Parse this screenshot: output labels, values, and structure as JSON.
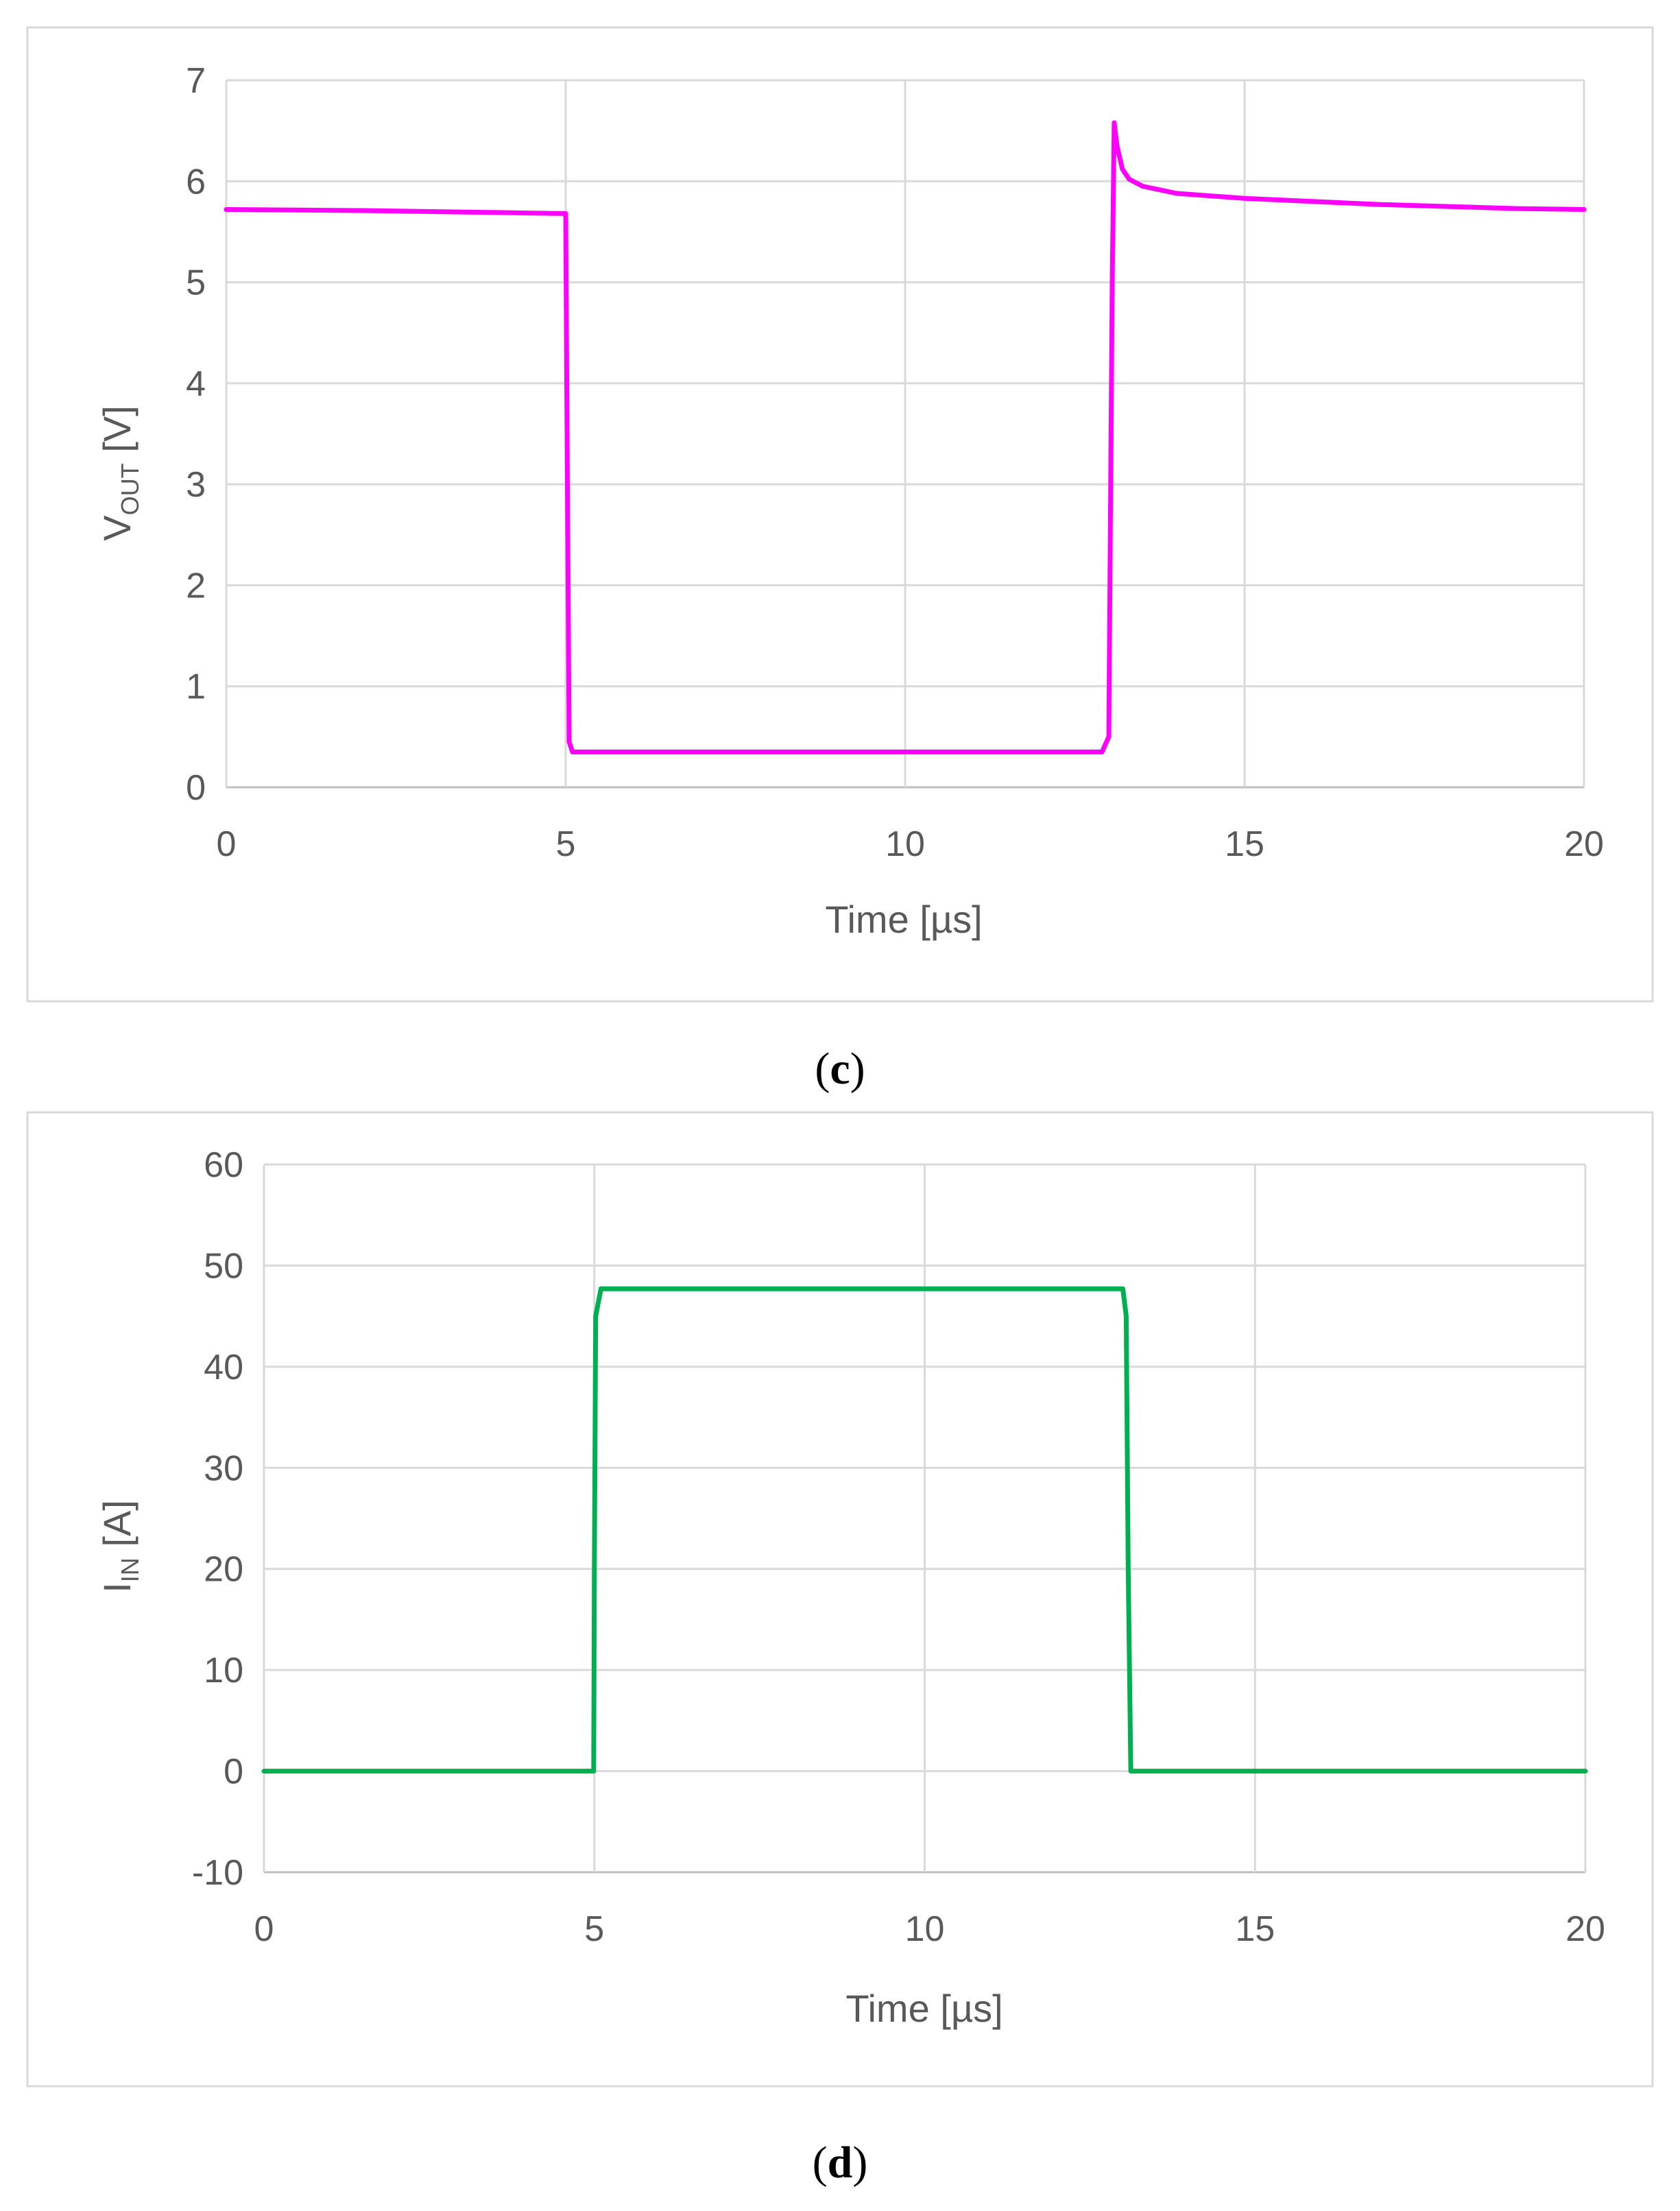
{
  "panels": [
    {
      "label_open": "(",
      "label": "c",
      "label_close": ")"
    },
    {
      "label_open": "(",
      "label": "d",
      "label_close": ")"
    }
  ],
  "chart_data": [
    {
      "type": "line",
      "title": "",
      "xlabel": "Time [µs]",
      "ylabel_main": "V",
      "ylabel_sub": "OUT",
      "ylabel_unit": " [V]",
      "xlim": [
        0,
        20
      ],
      "ylim": [
        0,
        7
      ],
      "xticks": [
        0,
        5,
        10,
        15,
        20
      ],
      "yticks": [
        0,
        1,
        2,
        3,
        4,
        5,
        6,
        7
      ],
      "grid": true,
      "legend": "none",
      "color": "#ff00ff",
      "series": [
        {
          "x": [
            0,
            2,
            4,
            5,
            5.02,
            5.05,
            5.1,
            7,
            10,
            12.9,
            13.0,
            13.05,
            13.08,
            13.12,
            13.2,
            13.3,
            13.5,
            14,
            15,
            16,
            17,
            18,
            19,
            20
          ],
          "y": [
            5.72,
            5.71,
            5.69,
            5.68,
            3.5,
            0.45,
            0.35,
            0.35,
            0.35,
            0.35,
            0.5,
            5.0,
            6.58,
            6.35,
            6.12,
            6.02,
            5.95,
            5.88,
            5.83,
            5.8,
            5.77,
            5.75,
            5.73,
            5.72
          ]
        }
      ]
    },
    {
      "type": "line",
      "title": "",
      "xlabel": "Time [µs]",
      "ylabel_main": "I",
      "ylabel_sub": "IN",
      "ylabel_unit": " [A]",
      "xlim": [
        0,
        20
      ],
      "ylim": [
        -10,
        60
      ],
      "xticks": [
        0,
        5,
        10,
        15,
        20
      ],
      "yticks": [
        -10,
        0,
        10,
        20,
        30,
        40,
        50,
        60
      ],
      "grid": true,
      "legend": "none",
      "color": "#00b050",
      "series": [
        {
          "x": [
            0,
            4.99,
            5.0,
            5.02,
            5.1,
            10,
            13.0,
            13.05,
            13.08,
            13.12,
            15,
            20
          ],
          "y": [
            0,
            0,
            20,
            45,
            47.7,
            47.7,
            47.7,
            45,
            20,
            0,
            0,
            0
          ]
        }
      ]
    }
  ]
}
